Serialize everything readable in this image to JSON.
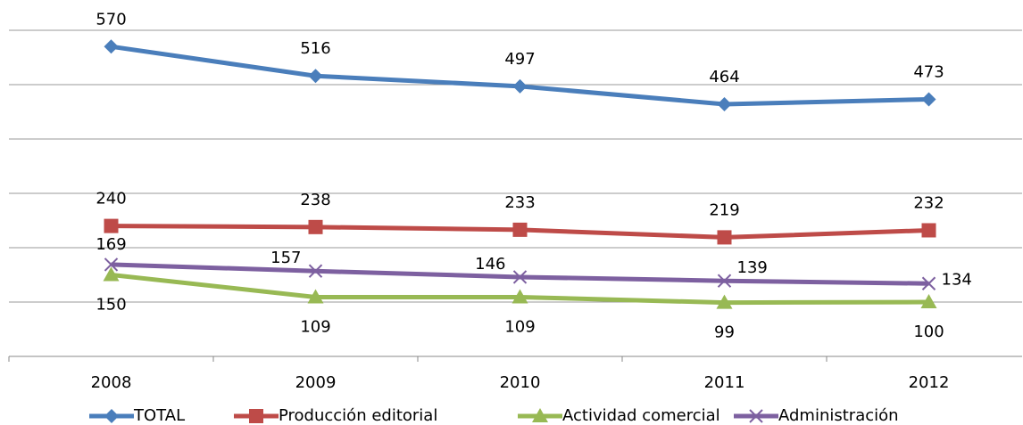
{
  "chart_data": {
    "type": "line",
    "categories": [
      "2008",
      "2009",
      "2010",
      "2011",
      "2012"
    ],
    "series": [
      {
        "name": "TOTAL",
        "color": "#4a7ebb",
        "marker": "diamond",
        "values": [
          570,
          516,
          497,
          464,
          473
        ]
      },
      {
        "name": "Producción editorial",
        "color": "#be4b48",
        "marker": "square",
        "values": [
          240,
          238,
          233,
          219,
          232
        ]
      },
      {
        "name": "Actividad comercial",
        "color": "#98b954",
        "marker": "triangle",
        "values": [
          150,
          109,
          109,
          99,
          100
        ]
      },
      {
        "name": "Administración",
        "color": "#7d60a0",
        "marker": "x",
        "values": [
          169,
          157,
          146,
          139,
          134
        ]
      }
    ],
    "ylim": [
      0,
      600
    ],
    "yticks": [
      0,
      100,
      200,
      300,
      400,
      500,
      600
    ],
    "grid": true,
    "legend": "bottom"
  }
}
